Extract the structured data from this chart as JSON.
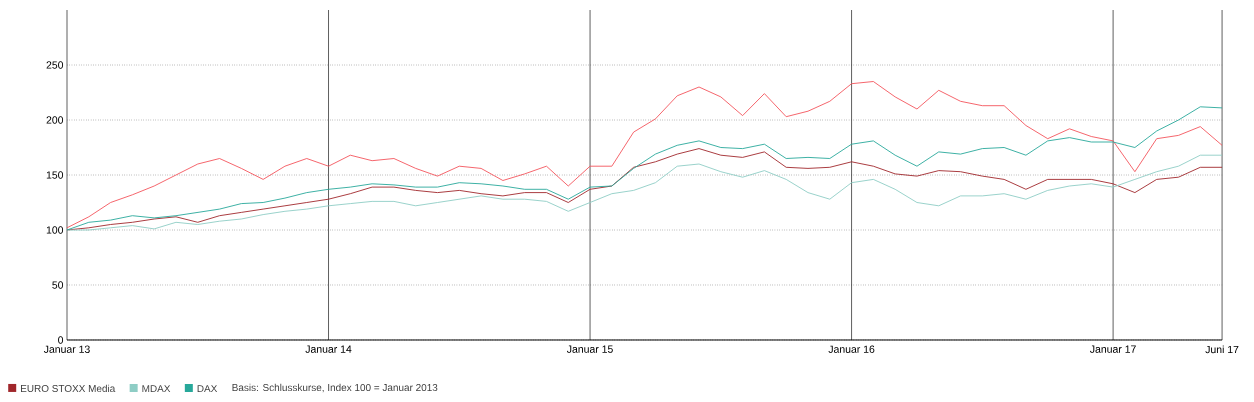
{
  "chart_data": {
    "type": "line",
    "x": [
      "2013-01",
      "2013-02",
      "2013-03",
      "2013-04",
      "2013-05",
      "2013-06",
      "2013-07",
      "2013-08",
      "2013-09",
      "2013-10",
      "2013-11",
      "2013-12",
      "2014-01",
      "2014-02",
      "2014-03",
      "2014-04",
      "2014-05",
      "2014-06",
      "2014-07",
      "2014-08",
      "2014-09",
      "2014-10",
      "2014-11",
      "2014-12",
      "2015-01",
      "2015-02",
      "2015-03",
      "2015-04",
      "2015-05",
      "2015-06",
      "2015-07",
      "2015-08",
      "2015-09",
      "2015-10",
      "2015-11",
      "2015-12",
      "2016-01",
      "2016-02",
      "2016-03",
      "2016-04",
      "2016-05",
      "2016-06",
      "2016-07",
      "2016-08",
      "2016-09",
      "2016-10",
      "2016-11",
      "2016-12",
      "2017-01",
      "2017-02",
      "2017-03",
      "2017-04",
      "2017-05",
      "2017-06"
    ],
    "series": [
      {
        "color": "#f4545c",
        "values": [
          102,
          112,
          125,
          132,
          140,
          150,
          160,
          165,
          156,
          146,
          158,
          165,
          158,
          168,
          163,
          165,
          156,
          149,
          158,
          156,
          145,
          151,
          158,
          140,
          158,
          158,
          189,
          201,
          222,
          230,
          221,
          204,
          224,
          203,
          208,
          217,
          233,
          235,
          221,
          210,
          227,
          217,
          213,
          213,
          195,
          183,
          192,
          185,
          181,
          153,
          183,
          186,
          194,
          177
        ]
      },
      {
        "name": "EURO STOXX Media",
        "color": "#a0262b",
        "values": [
          100,
          102,
          105,
          107,
          110,
          112,
          107,
          113,
          116,
          119,
          122,
          125,
          128,
          133,
          139,
          139,
          136,
          134,
          136,
          133,
          131,
          134,
          134,
          125,
          137,
          140,
          157,
          162,
          169,
          174,
          168,
          166,
          171,
          157,
          156,
          157,
          162,
          158,
          151,
          149,
          154,
          153,
          149,
          146,
          137,
          146,
          146,
          146,
          142,
          134,
          146,
          148,
          157,
          157
        ]
      },
      {
        "name": "MDAX",
        "color": "#8ecdc5",
        "values": [
          100,
          100,
          102,
          104,
          101,
          107,
          105,
          108,
          110,
          114,
          117,
          119,
          122,
          124,
          126,
          126,
          122,
          125,
          128,
          131,
          128,
          128,
          126,
          117,
          125,
          133,
          136,
          143,
          158,
          160,
          153,
          148,
          154,
          146,
          134,
          128,
          143,
          146,
          137,
          125,
          122,
          131,
          131,
          133,
          128,
          136,
          140,
          142,
          139,
          146,
          153,
          158,
          168,
          168
        ]
      },
      {
        "name": "DAX",
        "color": "#27a89a",
        "values": [
          100,
          107,
          109,
          113,
          111,
          113,
          116,
          119,
          124,
          125,
          129,
          134,
          137,
          139,
          142,
          141,
          139,
          139,
          143,
          142,
          140,
          137,
          137,
          128,
          139,
          140,
          156,
          169,
          177,
          181,
          175,
          174,
          178,
          165,
          166,
          165,
          178,
          181,
          168,
          158,
          171,
          169,
          174,
          175,
          168,
          181,
          184,
          180,
          180,
          175,
          190,
          200,
          212,
          211
        ]
      }
    ],
    "xlim": [
      "2013-01",
      "2017-06"
    ],
    "xticks": [
      {
        "value": "2013-01",
        "label": "Januar 13"
      },
      {
        "value": "2014-01",
        "label": "Januar 14"
      },
      {
        "value": "2015-01",
        "label": "Januar 15"
      },
      {
        "value": "2016-01",
        "label": "Januar 16"
      },
      {
        "value": "2017-01",
        "label": "Januar 17"
      },
      {
        "value": "2017-06",
        "label": "Juni 17"
      }
    ],
    "ylim": [
      0,
      300
    ],
    "yticks": [
      0,
      50,
      100,
      150,
      200,
      250
    ],
    "grid": true,
    "legend": "bottom",
    "marker": "none",
    "line_style": "solid",
    "annotations": [
      "Basis: Schlusskurse, Index 100 = Januar 2013"
    ]
  }
}
